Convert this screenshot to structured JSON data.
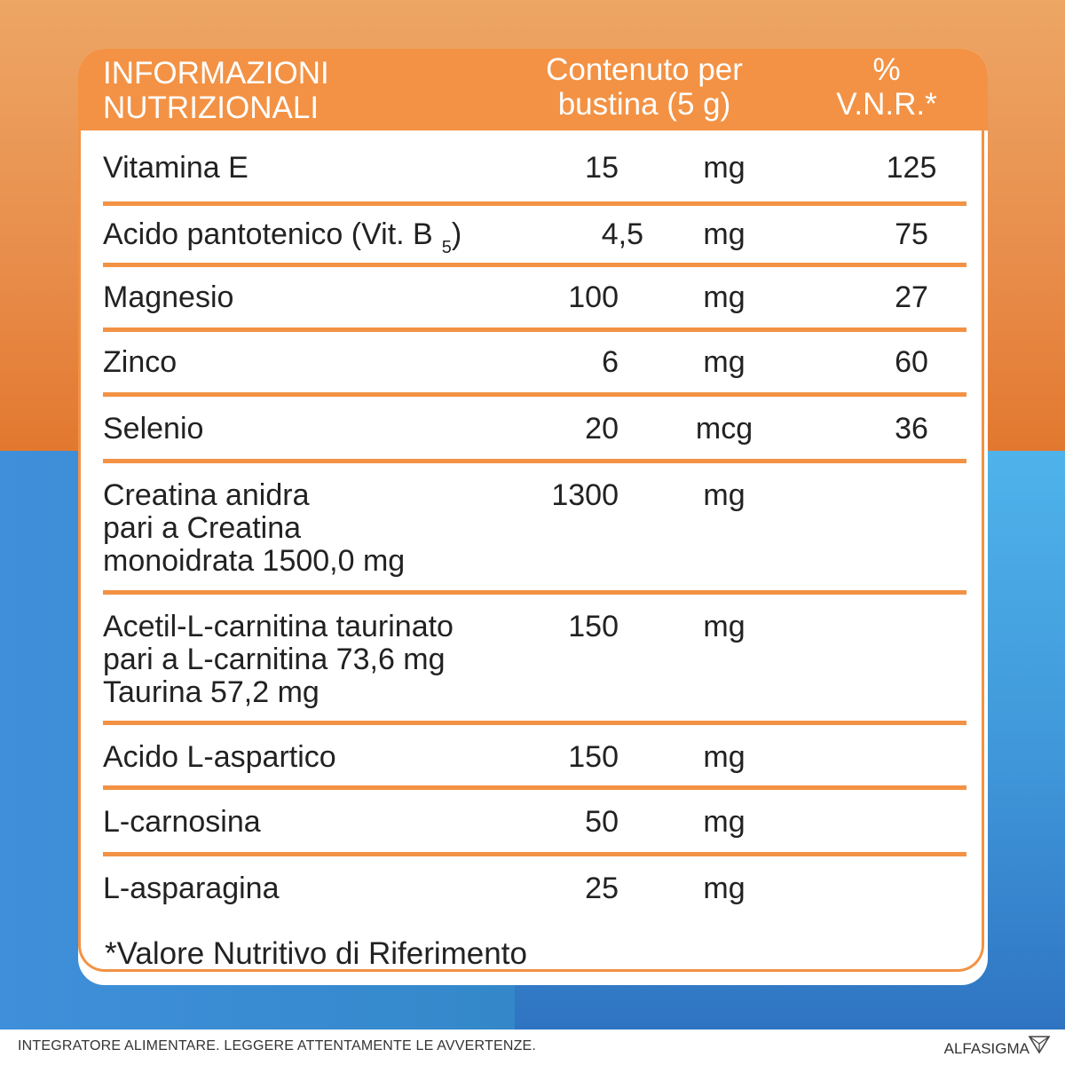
{
  "header": {
    "col1_line1": "INFORMAZIONI",
    "col1_line2": "NUTRIZIONALI",
    "col2_line1": "Contenuto per",
    "col2_line2": "bustina (5 g)",
    "col3": "% V.N.R.*"
  },
  "rows": [
    {
      "name": "Vitamina E",
      "qty": "15",
      "unit": "mg",
      "vnr": "125"
    },
    {
      "name": "Acido pantotenico (Vit. B",
      "sub": "5",
      "name_end": ")",
      "qty": "4,5",
      "unit": "mg",
      "vnr": "75"
    },
    {
      "name": "Magnesio",
      "qty": "100",
      "unit": "mg",
      "vnr": "27"
    },
    {
      "name": "Zinco",
      "qty": "6",
      "unit": "mg",
      "vnr": "60"
    },
    {
      "name": "Selenio",
      "qty": "20",
      "unit": "mcg",
      "vnr": "36"
    },
    {
      "name": "Creatina anidra\npari a Creatina\nmonoidrata 1500,0 mg",
      "qty": "1300",
      "unit": "mg",
      "vnr": ""
    },
    {
      "name": "Acetil-L-carnitina taurinato\npari a L-carnitina 73,6 mg\nTaurina 57,2 mg",
      "qty": "150",
      "unit": "mg",
      "vnr": ""
    },
    {
      "name": "Acido L-aspartico",
      "qty": "150",
      "unit": "mg",
      "vnr": ""
    },
    {
      "name": "L-carnosina",
      "qty": "50",
      "unit": "mg",
      "vnr": ""
    },
    {
      "name": "L-asparagina",
      "qty": "25",
      "unit": "mg",
      "vnr": ""
    }
  ],
  "footnote": "*Valore Nutritivo di Riferimento",
  "footer": {
    "disclaimer": "INTEGRATORE ALIMENTARE. LEGGERE ATTENTAMENTE LE AVVERTENZE.",
    "brand": "ALFASIGMA",
    "brand_icon": "alfasigma-logo-icon"
  },
  "colors": {
    "accent_orange": "#f39244",
    "background_top": "#e88c4a",
    "background_bottom": "#3f8fda",
    "text": "#222222"
  }
}
